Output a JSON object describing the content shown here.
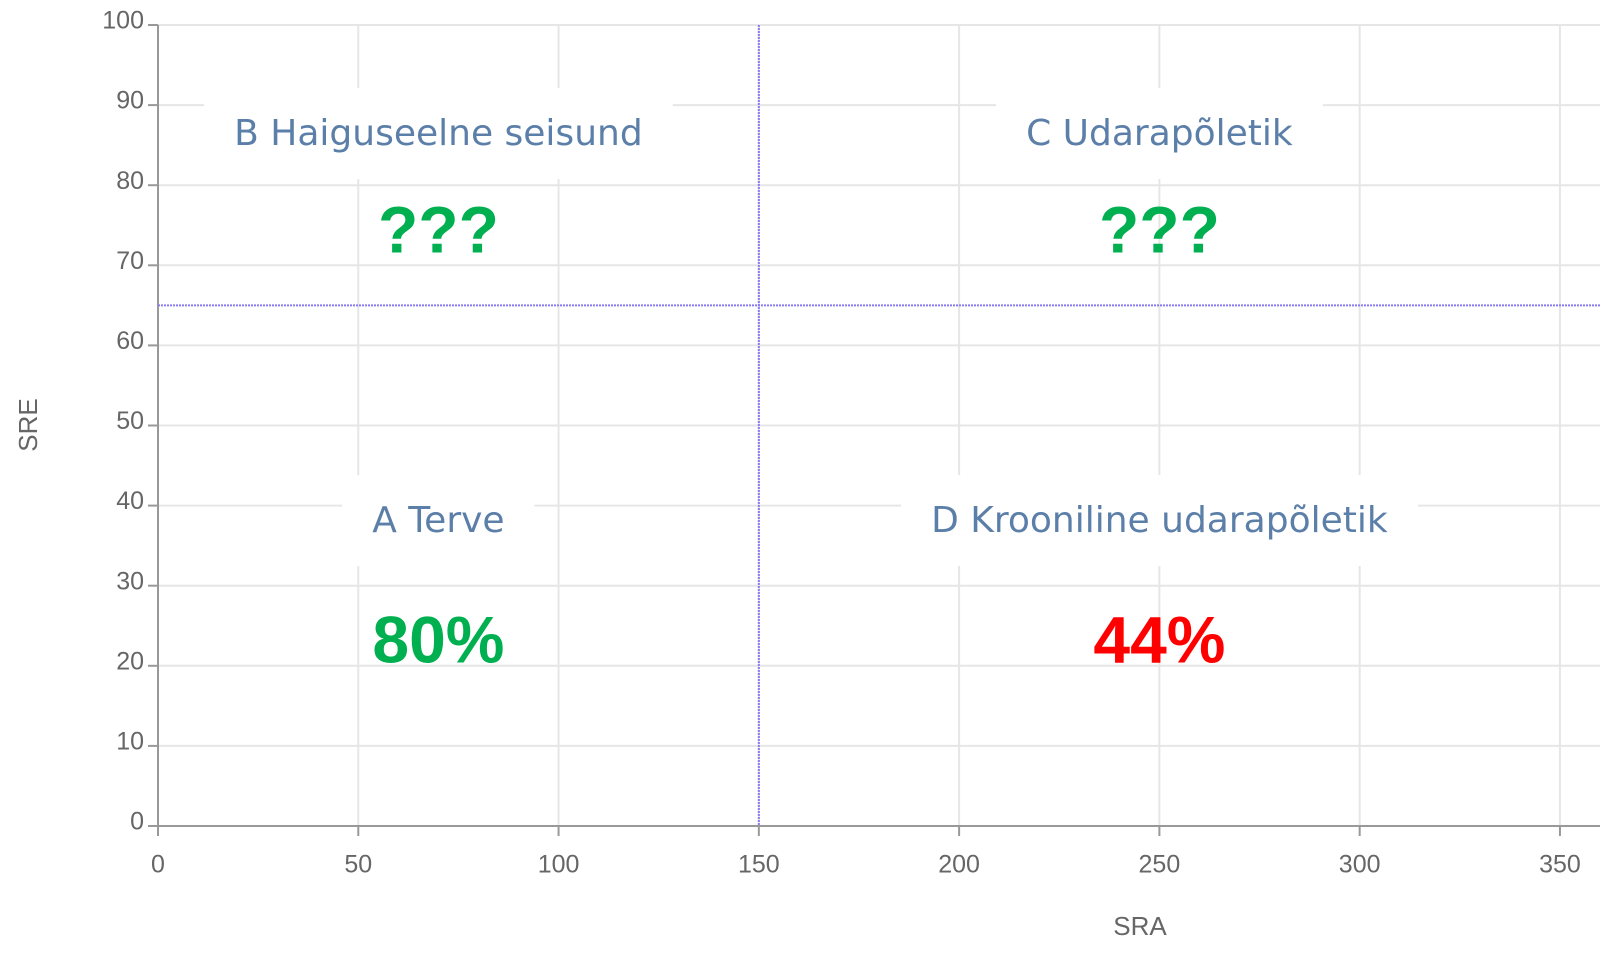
{
  "chart_data": {
    "type": "quadrant",
    "x_label": "SRA",
    "y_label": "SRE",
    "xlim": [
      0,
      360
    ],
    "ylim": [
      0,
      100
    ],
    "xticks": [
      0,
      50,
      100,
      150,
      200,
      250,
      300,
      350
    ],
    "yticks": [
      0,
      10,
      20,
      30,
      40,
      50,
      60,
      70,
      80,
      90,
      100
    ],
    "grid": true,
    "thresholds": {
      "x": 150,
      "y": 65
    },
    "threshold_color": "#8a7cf0",
    "categories": [
      "A Terve",
      "B Haiguseelne seisund",
      "C Udarapõletik",
      "D Krooniline udarapõletik"
    ],
    "values": [
      80,
      null,
      null,
      44
    ],
    "value_labels": [
      "80%",
      "???",
      "???",
      "44%"
    ],
    "colors": [
      "#00b050",
      "#00b050",
      "#00b050",
      "#ff0000"
    ]
  }
}
